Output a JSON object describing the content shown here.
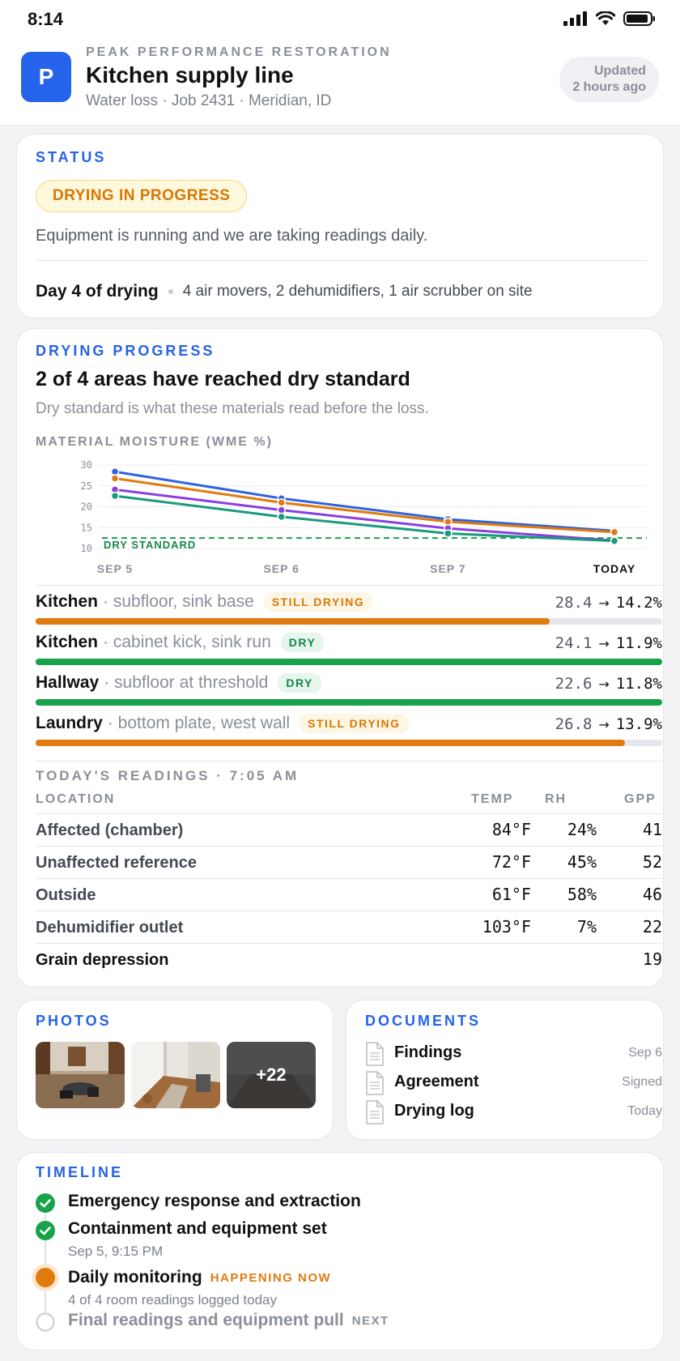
{
  "status_bar": {
    "time": "8:14"
  },
  "header": {
    "logo_letter": "P",
    "company": "PEAK PERFORMANCE RESTORATION",
    "title": "Kitchen supply line",
    "subtitle": "Water loss · Job 2431 · Meridian, ID",
    "updated_line1": "Updated",
    "updated_line2": "2 hours ago"
  },
  "status": {
    "heading": "STATUS",
    "badge": "DRYING IN PROGRESS",
    "description": "Equipment is running and we are taking readings daily.",
    "day": "Day 4 of drying",
    "equipment": "4 air movers, 2 dehumidifiers, 1 air scrubber on site"
  },
  "progress": {
    "heading": "DRYING PROGRESS",
    "title": "2 of 4 areas have reached dry standard",
    "subtitle": "Dry standard is what these materials read before the loss.",
    "chart_heading": "MATERIAL MOISTURE (WME %)"
  },
  "chart_data": {
    "type": "line",
    "x": [
      "SEP 5",
      "SEP 6",
      "SEP 7",
      "TODAY"
    ],
    "ylim": [
      10,
      30
    ],
    "yticks": [
      30,
      25,
      20,
      15,
      10
    ],
    "reference_label": "DRY STANDARD",
    "reference_value": 12.5,
    "series": [
      {
        "color": "#2f63e0",
        "values": [
          28.4,
          22.0,
          17.0,
          14.2
        ]
      },
      {
        "color": "#e07b10",
        "values": [
          26.8,
          21.0,
          16.4,
          13.9
        ]
      },
      {
        "color": "#8b3fe0",
        "values": [
          24.1,
          19.2,
          14.8,
          11.9
        ]
      },
      {
        "color": "#1a9a7a",
        "values": [
          22.6,
          17.6,
          13.6,
          11.8
        ]
      }
    ]
  },
  "areas": [
    {
      "name": "Kitchen",
      "detail": "· subfloor, sink base",
      "badge": "STILL DRYING",
      "state": "drying",
      "from": "28.4",
      "to": "14.2%",
      "progress": 0.82
    },
    {
      "name": "Kitchen",
      "detail": "· cabinet kick, sink run",
      "badge": "DRY",
      "state": "dry",
      "from": "24.1",
      "to": "11.9%",
      "progress": 1.0
    },
    {
      "name": "Hallway",
      "detail": "· subfloor at threshold",
      "badge": "DRY",
      "state": "dry",
      "from": "22.6",
      "to": "11.8%",
      "progress": 1.0
    },
    {
      "name": "Laundry",
      "detail": "· bottom plate, west wall",
      "badge": "STILL DRYING",
      "state": "drying",
      "from": "26.8",
      "to": "13.9%",
      "progress": 0.94
    }
  ],
  "arrow": "→",
  "readings": {
    "heading": "TODAY'S READINGS · 7:05 AM",
    "columns": {
      "location": "LOCATION",
      "temp": "TEMP",
      "rh": "RH",
      "gpp": "GPP"
    },
    "rows": [
      {
        "location": "Affected (chamber)",
        "temp": "84°F",
        "rh": "24%",
        "gpp": "41"
      },
      {
        "location": "Unaffected reference",
        "temp": "72°F",
        "rh": "45%",
        "gpp": "52"
      },
      {
        "location": "Outside",
        "temp": "61°F",
        "rh": "58%",
        "gpp": "46"
      },
      {
        "location": "Dehumidifier outlet",
        "temp": "103°F",
        "rh": "7%",
        "gpp": "22"
      },
      {
        "location": "Grain depression",
        "temp": "",
        "rh": "",
        "gpp": "19"
      }
    ]
  },
  "photos": {
    "heading": "PHOTOS",
    "more": "+22"
  },
  "documents": {
    "heading": "DOCUMENTS",
    "items": [
      {
        "name": "Findings",
        "meta": "Sep 6"
      },
      {
        "name": "Agreement",
        "meta": "Signed"
      },
      {
        "name": "Drying log",
        "meta": "Today"
      }
    ]
  },
  "timeline": {
    "heading": "TIMELINE",
    "items": [
      {
        "title": "Emergency response and extraction",
        "sub": "",
        "tag": "",
        "state": "done"
      },
      {
        "title": "Containment and equipment set",
        "sub": "Sep 5, 9:15 PM",
        "tag": "",
        "state": "done"
      },
      {
        "title": "Daily monitoring",
        "sub": "4 of 4 room readings logged today",
        "tag": "HAPPENING NOW",
        "state": "current"
      },
      {
        "title": "Final readings and equipment pull",
        "sub": "",
        "tag": "NEXT",
        "state": "next"
      }
    ]
  }
}
